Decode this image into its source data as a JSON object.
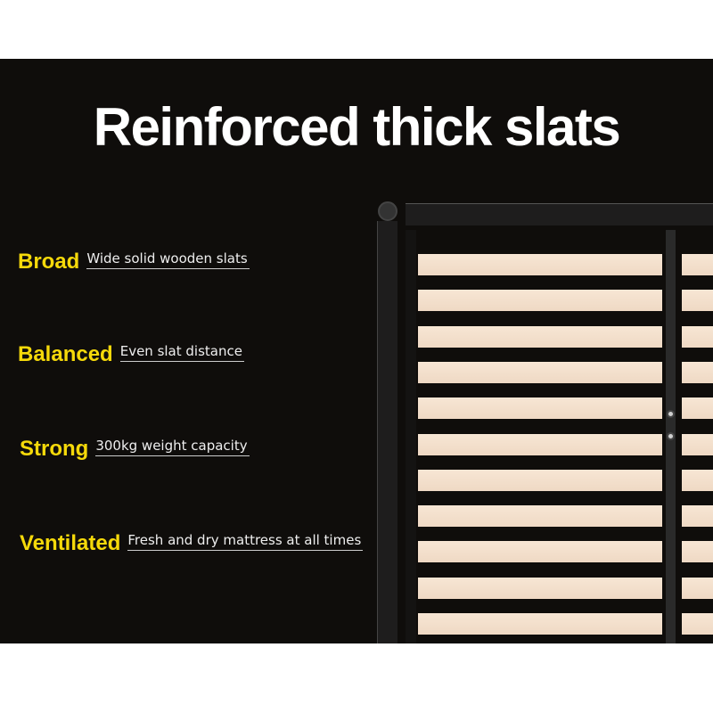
{
  "title": "Reinforced thick slats",
  "features": [
    {
      "key": "Broad",
      "value": "Wide solid wooden slats"
    },
    {
      "key": "Balanced",
      "value": "Even slat distance"
    },
    {
      "key": "Strong",
      "value": "300kg weight capacity"
    },
    {
      "key": "Ventilated",
      "value": "Fresh and dry mattress at all times"
    }
  ],
  "colors": {
    "background": "#0f0d0b",
    "accent": "#f5d90a",
    "slat": "#f3dfcb"
  },
  "slat_count": 11
}
